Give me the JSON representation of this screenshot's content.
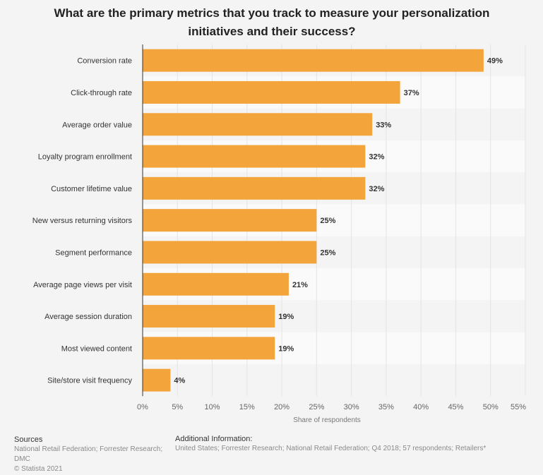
{
  "chart_data": {
    "type": "bar",
    "orientation": "horizontal",
    "title": "What are the primary metrics that you track to measure your personalization initiatives and their success?",
    "xlabel": "Share of respondents",
    "ylabel": "",
    "xlim": [
      0,
      55
    ],
    "ticks": [
      "0%",
      "5%",
      "10%",
      "15%",
      "20%",
      "25%",
      "30%",
      "35%",
      "40%",
      "45%",
      "50%",
      "55%"
    ],
    "tick_values": [
      0,
      5,
      10,
      15,
      20,
      25,
      30,
      35,
      40,
      45,
      50,
      55
    ],
    "grid": true,
    "bar_color": "#f3a53c",
    "categories": [
      "Conversion rate",
      "Click-through rate",
      "Average order value",
      "Loyalty program enrollment",
      "Customer lifetime value",
      "New versus returning visitors",
      "Segment performance",
      "Average page views per visit",
      "Average session duration",
      "Most viewed content",
      "Site/store visit frequency"
    ],
    "values": [
      49,
      37,
      33,
      32,
      32,
      25,
      25,
      21,
      19,
      19,
      4
    ],
    "data_labels": [
      "49%",
      "37%",
      "33%",
      "32%",
      "32%",
      "25%",
      "25%",
      "21%",
      "19%",
      "19%",
      "4%"
    ]
  },
  "footer": {
    "sources_heading": "Sources",
    "sources_text": "National Retail Federation; Forrester Research; DMC",
    "copyright": "© Statista 2021",
    "additional_heading": "Additional Information:",
    "additional_text": "United States; Forrester Research; National Retail Federation; Q4 2018; 57 respondents; Retailers*"
  }
}
